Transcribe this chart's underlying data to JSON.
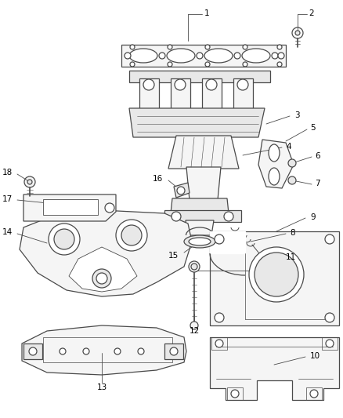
{
  "background_color": "#ffffff",
  "line_color": "#4a4a4a",
  "fill_light": "#f5f5f5",
  "fill_mid": "#e8e8e8",
  "label_fontsize": 7.5,
  "lw": 0.9
}
